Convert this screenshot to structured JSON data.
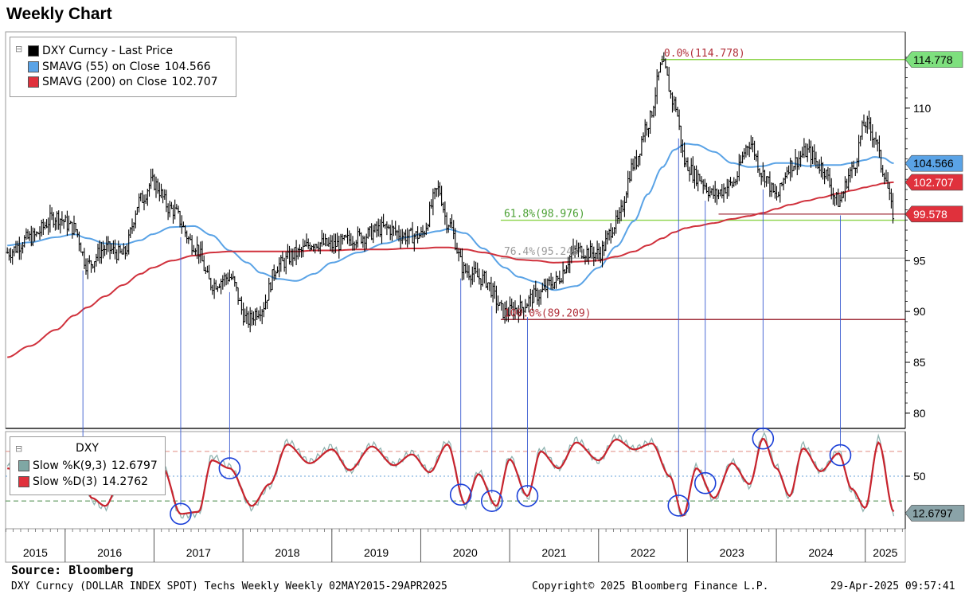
{
  "title": "Weekly Chart",
  "source": "Source:  Bloomberg",
  "footer": {
    "left": "DXY Curncy (DOLLAR INDEX SPOT) Techs Weekly  Weekly 02MAY2015-29APR2025",
    "mid": "Copyright© 2025 Bloomberg Finance L.P.",
    "right": "29-Apr-2025 09:57:41"
  },
  "legend_main": {
    "items": [
      {
        "label": "DXY Curncy - Last Price",
        "value": "",
        "color": "#000000"
      },
      {
        "label": "SMAVG (55)  on Close",
        "value": "104.566",
        "color": "#5aa3e6"
      },
      {
        "label": "SMAVG (200)  on Close",
        "value": "102.707",
        "color": "#e0313c"
      }
    ]
  },
  "legend_osc": {
    "header": "DXY",
    "items": [
      {
        "label": "Slow %K(9,3)",
        "value": "12.6797",
        "color": "#7fa7a4"
      },
      {
        "label": "Slow %D(3)",
        "value": "14.2762",
        "color": "#e0313c"
      }
    ]
  },
  "chart_data": [
    {
      "type": "line",
      "x": [
        2015.35,
        2015.6,
        2015.9,
        2016.1,
        2016.25,
        2016.45,
        2016.65,
        2016.85,
        2016.98,
        2017.2,
        2017.45,
        2017.65,
        2017.85,
        2018.05,
        2018.2,
        2018.4,
        2018.6,
        2018.8,
        2019.0,
        2019.3,
        2019.6,
        2019.85,
        2020.0,
        2020.2,
        2020.3,
        2020.5,
        2020.7,
        2020.95,
        2021.1,
        2021.3,
        2021.5,
        2021.75,
        2022.0,
        2022.2,
        2022.4,
        2022.55,
        2022.72,
        2022.85,
        2022.98,
        2023.1,
        2023.3,
        2023.5,
        2023.7,
        2023.85,
        2024.0,
        2024.15,
        2024.35,
        2024.5,
        2024.7,
        2024.85,
        2025.0,
        2025.1,
        2025.2,
        2025.32
      ],
      "series": [
        {
          "name": "DXY Curncy - Last Price",
          "values": [
            95.8,
            97.2,
            99.3,
            98.2,
            94.6,
            96.2,
            95.6,
            101.0,
            102.7,
            100.0,
            96.6,
            92.7,
            93.4,
            89.1,
            90.3,
            94.6,
            95.7,
            96.8,
            96.5,
            97.3,
            98.2,
            97.4,
            97.5,
            102.0,
            98.8,
            94.0,
            93.2,
            89.9,
            90.3,
            91.6,
            92.9,
            96.0,
            95.7,
            98.7,
            104.5,
            108.5,
            114.2,
            110.5,
            104.5,
            103.3,
            101.5,
            102.5,
            106.6,
            103.5,
            101.3,
            104.4,
            105.7,
            104.3,
            100.8,
            103.9,
            108.5,
            107.3,
            103.9,
            99.58
          ]
        },
        {
          "name": "SMAVG (55)  on Close",
          "values": [
            96.5,
            96.8,
            97.3,
            97.6,
            97.2,
            96.7,
            96.6,
            97.0,
            97.6,
            98.3,
            98.4,
            97.5,
            96.0,
            94.8,
            93.8,
            93.2,
            93.0,
            93.7,
            94.8,
            95.8,
            96.7,
            97.3,
            97.6,
            97.9,
            98.1,
            97.7,
            96.2,
            94.3,
            93.4,
            92.9,
            92.1,
            92.5,
            94.3,
            96.4,
            98.9,
            101.5,
            104.2,
            105.9,
            106.5,
            106.4,
            105.7,
            104.6,
            104.2,
            104.3,
            104.6,
            104.6,
            104.3,
            104.4,
            104.4,
            104.6,
            104.9,
            105.2,
            105.1,
            104.566
          ]
        },
        {
          "name": "SMAVG (200)  on Close",
          "values": [
            85.5,
            86.6,
            88.2,
            89.6,
            90.4,
            91.5,
            92.6,
            93.7,
            94.3,
            95.0,
            95.5,
            95.8,
            95.9,
            95.9,
            95.9,
            95.9,
            95.9,
            96.0,
            96.0,
            96.1,
            96.1,
            96.2,
            96.2,
            96.3,
            96.3,
            96.1,
            95.8,
            95.4,
            95.1,
            95.0,
            94.8,
            94.9,
            95.0,
            95.4,
            95.9,
            96.5,
            97.2,
            97.8,
            98.2,
            98.4,
            98.7,
            99.1,
            99.4,
            99.7,
            100.1,
            100.5,
            100.9,
            101.2,
            101.6,
            101.9,
            102.2,
            102.4,
            102.6,
            102.707
          ]
        }
      ],
      "ylim": [
        78.5,
        117.5
      ],
      "yticks": [
        "80",
        "85",
        "90",
        "95",
        "110"
      ],
      "xlim": [
        2015.33,
        2025.45
      ],
      "year_labels": [
        "2015",
        "2016",
        "2017",
        "2018",
        "2019",
        "2020",
        "2021",
        "2022",
        "2023",
        "2024",
        "2025"
      ],
      "grid": false,
      "fib_levels": [
        {
          "label": "0.0%(114.778)",
          "value": 114.778,
          "line_color": "#8cd44a",
          "text_color": "#b2303a",
          "start": 2022.7
        },
        {
          "label": "61.8%(98.976)",
          "value": 98.976,
          "line_color": "#8cd44a",
          "text_color": "#4aa032",
          "start": 2020.9
        },
        {
          "label": "76.4%(95.243)",
          "value": 95.243,
          "line_color": "#b8b8b8",
          "text_color": "#9a9a9a",
          "start": 2020.9
        },
        {
          "label": "100.0%(89.209)",
          "value": 89.209,
          "line_color": "#a0303c",
          "text_color": "#b2303a",
          "start": 2020.9
        }
      ],
      "support_line": {
        "value": 99.578,
        "start": 2023.35
      },
      "price_tags": [
        {
          "text": "114.778",
          "value": 114.778,
          "bg": "#7ee07e",
          "color": "#000000"
        },
        {
          "text": "104.566",
          "value": 104.566,
          "bg": "#5aa3e6",
          "color": "#000000"
        },
        {
          "text": "102.707",
          "value": 102.707,
          "bg": "#e0313c",
          "color": "#ffffff"
        },
        {
          "text": "99.578",
          "value": 99.578,
          "bg": "#e0313c",
          "color": "#ffffff"
        }
      ]
    },
    {
      "type": "line",
      "x": [
        2015.35,
        2015.55,
        2015.75,
        2015.95,
        2016.15,
        2016.3,
        2016.45,
        2016.7,
        2016.95,
        2017.1,
        2017.3,
        2017.5,
        2017.65,
        2017.85,
        2018.1,
        2018.3,
        2018.5,
        2018.75,
        2019.0,
        2019.2,
        2019.45,
        2019.7,
        2019.9,
        2020.1,
        2020.3,
        2020.5,
        2020.65,
        2020.85,
        2021.0,
        2021.2,
        2021.35,
        2021.55,
        2021.75,
        2022.0,
        2022.2,
        2022.4,
        2022.6,
        2022.8,
        2022.95,
        2023.1,
        2023.3,
        2023.5,
        2023.7,
        2023.85,
        2024.0,
        2024.15,
        2024.3,
        2024.5,
        2024.7,
        2024.85,
        2025.0,
        2025.15,
        2025.32
      ],
      "series": [
        {
          "name": "Slow %K(9,3)",
          "values": [
            60,
            45,
            80,
            55,
            75,
            25,
            18,
            70,
            82,
            60,
            10,
            12,
            70,
            60,
            18,
            40,
            85,
            65,
            80,
            55,
            82,
            62,
            74,
            55,
            85,
            20,
            55,
            18,
            70,
            28,
            78,
            58,
            87,
            65,
            90,
            78,
            85,
            50,
            8,
            60,
            26,
            65,
            40,
            92,
            60,
            28,
            82,
            55,
            75,
            35,
            16,
            88,
            12.68
          ]
        },
        {
          "name": "Slow %D(3)",
          "values": [
            58,
            48,
            75,
            58,
            72,
            28,
            20,
            66,
            78,
            58,
            12,
            14,
            66,
            58,
            20,
            42,
            82,
            63,
            77,
            56,
            80,
            61,
            72,
            54,
            82,
            22,
            52,
            20,
            67,
            30,
            75,
            58,
            84,
            66,
            87,
            77,
            83,
            50,
            10,
            58,
            28,
            63,
            42,
            88,
            58,
            30,
            78,
            55,
            73,
            37,
            18,
            84,
            14.28
          ]
        }
      ],
      "ylim": [
        -3,
        95
      ],
      "yticks": [
        "50"
      ],
      "reference_lines": [
        75,
        50,
        25
      ],
      "last_value_tag": "12.6797",
      "circle_dates": [
        2016.2,
        2017.3,
        2017.85,
        2020.45,
        2020.8,
        2021.2,
        2022.9,
        2023.2,
        2023.85,
        2024.72
      ]
    }
  ]
}
